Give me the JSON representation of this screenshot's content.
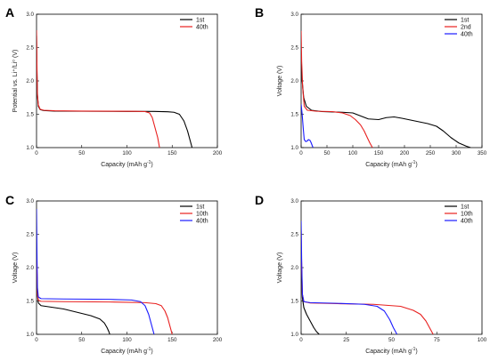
{
  "chart_data": [
    {
      "panel": "A",
      "type": "line",
      "title": "",
      "xlabel": "Capacity (mAh g",
      "xlabel_sup": "-1",
      "xlabel_suffix": ")",
      "ylabel": "Potential vs. Li⁺/Li⁰ (V)",
      "xlim": [
        0,
        200
      ],
      "ylim": [
        1.0,
        3.0
      ],
      "xticks": [
        0,
        50,
        100,
        150,
        200
      ],
      "yticks": [
        1.0,
        1.5,
        2.0,
        2.5,
        3.0
      ],
      "legend_position": "top-right",
      "series": [
        {
          "name": "1st",
          "color": "#000000",
          "points": [
            [
              0,
              2.68
            ],
            [
              0.5,
              2.1
            ],
            [
              1,
              1.78
            ],
            [
              2,
              1.62
            ],
            [
              4,
              1.57
            ],
            [
              8,
              1.555
            ],
            [
              20,
              1.548
            ],
            [
              50,
              1.545
            ],
            [
              100,
              1.543
            ],
            [
              130,
              1.542
            ],
            [
              145,
              1.538
            ],
            [
              152,
              1.53
            ],
            [
              158,
              1.5
            ],
            [
              163,
              1.4
            ],
            [
              167,
              1.25
            ],
            [
              170,
              1.1
            ],
            [
              172,
              1.0
            ]
          ]
        },
        {
          "name": "40th",
          "color": "#e8201f",
          "points": [
            [
              0,
              2.76
            ],
            [
              0.5,
              2.2
            ],
            [
              1,
              1.8
            ],
            [
              2,
              1.64
            ],
            [
              4,
              1.575
            ],
            [
              8,
              1.56
            ],
            [
              20,
              1.552
            ],
            [
              50,
              1.548
            ],
            [
              90,
              1.546
            ],
            [
              110,
              1.544
            ],
            [
              120,
              1.54
            ],
            [
              125,
              1.52
            ],
            [
              128,
              1.45
            ],
            [
              131,
              1.3
            ],
            [
              134,
              1.15
            ],
            [
              136,
              1.0
            ]
          ]
        }
      ]
    },
    {
      "panel": "B",
      "type": "line",
      "title": "",
      "xlabel": "Capacity (mAh g",
      "xlabel_sup": "-1",
      "xlabel_suffix": ")",
      "ylabel": "Voltage (V)",
      "xlim": [
        0,
        350
      ],
      "ylim": [
        1.0,
        3.0
      ],
      "xticks": [
        0,
        50,
        100,
        150,
        200,
        250,
        300,
        350
      ],
      "yticks": [
        1.0,
        1.5,
        2.0,
        2.5,
        3.0
      ],
      "legend_position": "top-right",
      "series": [
        {
          "name": "1st",
          "color": "#000000",
          "points": [
            [
              0,
              2.25
            ],
            [
              2,
              2.0
            ],
            [
              5,
              1.75
            ],
            [
              10,
              1.62
            ],
            [
              20,
              1.56
            ],
            [
              40,
              1.54
            ],
            [
              80,
              1.53
            ],
            [
              100,
              1.52
            ],
            [
              110,
              1.49
            ],
            [
              120,
              1.46
            ],
            [
              130,
              1.43
            ],
            [
              150,
              1.42
            ],
            [
              165,
              1.45
            ],
            [
              180,
              1.46
            ],
            [
              195,
              1.44
            ],
            [
              220,
              1.4
            ],
            [
              245,
              1.36
            ],
            [
              262,
              1.32
            ],
            [
              275,
              1.25
            ],
            [
              290,
              1.15
            ],
            [
              305,
              1.07
            ],
            [
              320,
              1.02
            ],
            [
              328,
              1.0
            ]
          ]
        },
        {
          "name": "2nd",
          "color": "#e8201f",
          "points": [
            [
              0,
              2.75
            ],
            [
              1,
              2.3
            ],
            [
              3,
              1.9
            ],
            [
              6,
              1.62
            ],
            [
              12,
              1.56
            ],
            [
              30,
              1.545
            ],
            [
              60,
              1.54
            ],
            [
              80,
              1.52
            ],
            [
              95,
              1.48
            ],
            [
              105,
              1.42
            ],
            [
              115,
              1.34
            ],
            [
              122,
              1.25
            ],
            [
              128,
              1.15
            ],
            [
              133,
              1.07
            ],
            [
              138,
              1.0
            ]
          ]
        },
        {
          "name": "40th",
          "color": "#1a1aff",
          "points": [
            [
              0,
              1.65
            ],
            [
              2,
              1.5
            ],
            [
              4,
              1.3
            ],
            [
              6,
              1.12
            ],
            [
              9,
              1.09
            ],
            [
              12,
              1.1
            ],
            [
              14,
              1.12
            ],
            [
              17,
              1.11
            ],
            [
              19,
              1.08
            ],
            [
              21,
              1.04
            ],
            [
              23,
              1.0
            ]
          ]
        }
      ]
    },
    {
      "panel": "C",
      "type": "line",
      "title": "",
      "xlabel": "Capacity (mAh g",
      "xlabel_sup": "-1",
      "xlabel_suffix": ")",
      "ylabel": "Voltage (V)",
      "xlim": [
        0,
        200
      ],
      "ylim": [
        1.0,
        3.0
      ],
      "xticks": [
        0,
        50,
        100,
        150,
        200
      ],
      "yticks": [
        1.0,
        1.5,
        2.0,
        2.5,
        3.0
      ],
      "legend_position": "top-right",
      "series": [
        {
          "name": "1st",
          "color": "#000000",
          "points": [
            [
              0,
              2.2
            ],
            [
              0.5,
              1.9
            ],
            [
              1,
              1.6
            ],
            [
              2,
              1.47
            ],
            [
              5,
              1.43
            ],
            [
              15,
              1.41
            ],
            [
              30,
              1.38
            ],
            [
              45,
              1.33
            ],
            [
              60,
              1.28
            ],
            [
              70,
              1.23
            ],
            [
              75,
              1.17
            ],
            [
              78,
              1.1
            ],
            [
              80,
              1.04
            ],
            [
              81,
              1.0
            ]
          ]
        },
        {
          "name": "10th",
          "color": "#e8201f",
          "points": [
            [
              0,
              2.3
            ],
            [
              0.5,
              1.95
            ],
            [
              1,
              1.6
            ],
            [
              2,
              1.51
            ],
            [
              5,
              1.495
            ],
            [
              30,
              1.49
            ],
            [
              80,
              1.485
            ],
            [
              120,
              1.475
            ],
            [
              132,
              1.46
            ],
            [
              138,
              1.43
            ],
            [
              142,
              1.35
            ],
            [
              145,
              1.25
            ],
            [
              148,
              1.1
            ],
            [
              150,
              1.0
            ]
          ]
        },
        {
          "name": "40th",
          "color": "#1a1aff",
          "points": [
            [
              0,
              2.88
            ],
            [
              0.5,
              2.2
            ],
            [
              1,
              1.7
            ],
            [
              2,
              1.56
            ],
            [
              5,
              1.535
            ],
            [
              30,
              1.53
            ],
            [
              80,
              1.525
            ],
            [
              105,
              1.515
            ],
            [
              115,
              1.49
            ],
            [
              120,
              1.43
            ],
            [
              124,
              1.3
            ],
            [
              127,
              1.15
            ],
            [
              130,
              1.0
            ]
          ]
        }
      ]
    },
    {
      "panel": "D",
      "type": "line",
      "title": "",
      "xlabel": "Capacity (mAh g",
      "xlabel_sup": "-1",
      "xlabel_suffix": ")",
      "ylabel": "Voltage (V)",
      "xlim": [
        0,
        100
      ],
      "ylim": [
        1.0,
        3.0
      ],
      "xticks": [
        0,
        25,
        50,
        75,
        100
      ],
      "yticks": [
        1.0,
        1.5,
        2.0,
        2.5,
        3.0
      ],
      "legend_position": "top-right",
      "series": [
        {
          "name": "1st",
          "color": "#000000",
          "points": [
            [
              0,
              2.1
            ],
            [
              0.3,
              1.8
            ],
            [
              0.7,
              1.55
            ],
            [
              1.5,
              1.4
            ],
            [
              3,
              1.3
            ],
            [
              5,
              1.2
            ],
            [
              7,
              1.1
            ],
            [
              8.5,
              1.04
            ],
            [
              10,
              1.0
            ]
          ]
        },
        {
          "name": "10th",
          "color": "#e8201f",
          "points": [
            [
              0,
              2.55
            ],
            [
              0.3,
              2.0
            ],
            [
              0.7,
              1.6
            ],
            [
              1.5,
              1.49
            ],
            [
              5,
              1.47
            ],
            [
              20,
              1.46
            ],
            [
              40,
              1.45
            ],
            [
              55,
              1.42
            ],
            [
              62,
              1.36
            ],
            [
              66,
              1.3
            ],
            [
              69,
              1.2
            ],
            [
              71,
              1.1
            ],
            [
              73,
              1.0
            ]
          ]
        },
        {
          "name": "40th",
          "color": "#1a1aff",
          "points": [
            [
              0,
              2.7
            ],
            [
              0.3,
              2.1
            ],
            [
              0.7,
              1.6
            ],
            [
              1.5,
              1.49
            ],
            [
              5,
              1.475
            ],
            [
              20,
              1.465
            ],
            [
              35,
              1.45
            ],
            [
              42,
              1.42
            ],
            [
              46,
              1.35
            ],
            [
              49,
              1.22
            ],
            [
              51,
              1.1
            ],
            [
              53,
              1.0
            ]
          ]
        }
      ]
    }
  ]
}
